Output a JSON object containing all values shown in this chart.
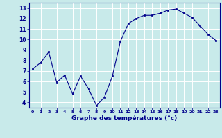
{
  "x": [
    0,
    1,
    2,
    3,
    4,
    5,
    6,
    7,
    8,
    9,
    10,
    11,
    12,
    13,
    14,
    15,
    16,
    17,
    18,
    19,
    20,
    21,
    22,
    23
  ],
  "y": [
    7.2,
    7.8,
    8.8,
    5.9,
    6.6,
    4.8,
    6.5,
    5.3,
    3.7,
    4.5,
    6.5,
    9.8,
    11.5,
    12.0,
    12.3,
    12.3,
    12.5,
    12.8,
    12.9,
    12.5,
    12.1,
    11.3,
    10.5,
    9.9
  ],
  "xlabel": "Graphe des températures (°c)",
  "ylim": [
    3.5,
    13.5
  ],
  "xlim": [
    -0.5,
    23.5
  ],
  "yticks": [
    4,
    5,
    6,
    7,
    8,
    9,
    10,
    11,
    12,
    13
  ],
  "xticks": [
    0,
    1,
    2,
    3,
    4,
    5,
    6,
    7,
    8,
    9,
    10,
    11,
    12,
    13,
    14,
    15,
    16,
    17,
    18,
    19,
    20,
    21,
    22,
    23
  ],
  "line_color": "#00008b",
  "marker_color": "#00008b",
  "bg_color": "#c8eaea",
  "grid_color": "#ffffff",
  "axis_color": "#00008b",
  "xlabel_color": "#00008b",
  "tick_label_color": "#00008b",
  "fig_width": 3.2,
  "fig_height": 2.0,
  "dpi": 100
}
